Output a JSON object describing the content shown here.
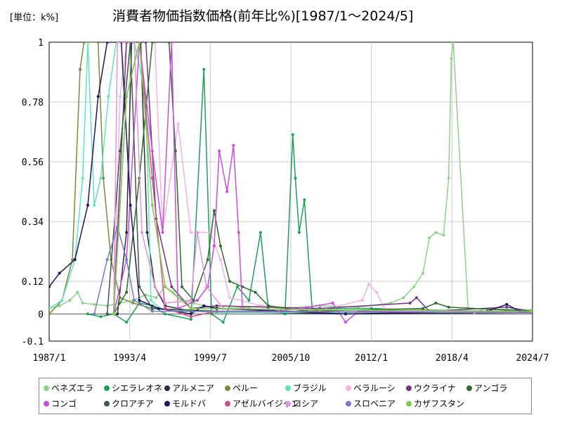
{
  "unit_label": "[単位：k%]",
  "chart_data": {
    "type": "line",
    "title": "消費者物価指数価格(前年比%)[1987/1～2024/5]",
    "xlabel": "",
    "ylabel": "",
    "x_tick_labels": [
      "1987/1",
      "1993/4",
      "1999/7",
      "2005/10",
      "2012/1",
      "2018/4",
      "2024/7"
    ],
    "y_tick_labels": [
      "1",
      "0.78",
      "0.56",
      "0.34",
      "0.12",
      "0",
      "-0.1"
    ],
    "ylim": [
      -0.1,
      1
    ],
    "xlim": [
      1987.0,
      2024.5
    ],
    "grid": true,
    "legend_position": "bottom",
    "series": [
      {
        "name": "ベネズエラ",
        "color": "#8fd18a",
        "points": [
          [
            1987.0,
            0.02
          ],
          [
            1987.8,
            0.03
          ],
          [
            1988.6,
            0.05
          ],
          [
            1989.2,
            0.08
          ],
          [
            1989.6,
            0.04
          ],
          [
            1990.5,
            0.035
          ],
          [
            1991.5,
            0.03
          ],
          [
            1992.5,
            0.04
          ],
          [
            1993.5,
            0.05
          ],
          [
            1994.5,
            0.07
          ],
          [
            1995.3,
            0.06
          ],
          [
            1996.0,
            0.1
          ],
          [
            1996.6,
            0.08
          ],
          [
            1997.3,
            0.05
          ],
          [
            1998.2,
            0.04
          ],
          [
            1999.0,
            0.03
          ],
          [
            2000.5,
            0.02
          ],
          [
            2002.5,
            0.025
          ],
          [
            2003.5,
            0.03
          ],
          [
            2005.0,
            0.02
          ],
          [
            2008.0,
            0.03
          ],
          [
            2011.0,
            0.025
          ],
          [
            2013.5,
            0.04
          ],
          [
            2014.5,
            0.06
          ],
          [
            2015.3,
            0.1
          ],
          [
            2016.0,
            0.15
          ],
          [
            2016.5,
            0.28
          ],
          [
            2017.0,
            0.3
          ],
          [
            2017.6,
            0.29
          ],
          [
            2018.0,
            0.5
          ],
          [
            2018.2,
            0.94
          ],
          [
            2018.35,
            1.0
          ],
          [
            2019.5,
            0.02
          ],
          [
            2024.4,
            0.015
          ]
        ]
      },
      {
        "name": "シエラレオネ",
        "color": "#1e9e5c",
        "points": [
          [
            1990.0,
            0.0
          ],
          [
            1991.0,
            -0.01
          ],
          [
            1992.0,
            0.0
          ],
          [
            1993.0,
            -0.03
          ],
          [
            1994.0,
            0.04
          ],
          [
            1995.0,
            0.03
          ],
          [
            1996.0,
            0.0
          ],
          [
            1998.0,
            -0.02
          ],
          [
            1999.0,
            0.9
          ],
          [
            1999.6,
            0.0
          ],
          [
            2000.5,
            -0.03
          ],
          [
            2001.6,
            0.1
          ],
          [
            2002.5,
            0.05
          ],
          [
            2003.4,
            0.3
          ],
          [
            2004.0,
            0.02
          ],
          [
            2005.3,
            0.0
          ],
          [
            2005.9,
            0.66
          ],
          [
            2006.1,
            0.5
          ],
          [
            2006.4,
            0.3
          ],
          [
            2006.8,
            0.42
          ],
          [
            2007.4,
            0.02
          ],
          [
            2012.0,
            0.02
          ],
          [
            2016.0,
            0.015
          ],
          [
            2020.5,
            0.01
          ]
        ]
      },
      {
        "name": "アルメニア",
        "color": "#2a2a3a",
        "points": [
          [
            1992.3,
            0.0
          ],
          [
            1993.0,
            0.3
          ],
          [
            1993.4,
            1.0
          ],
          [
            1994.1,
            1.0
          ],
          [
            1994.6,
            0.3
          ],
          [
            1995.2,
            0.1
          ],
          [
            1996.0,
            0.03
          ],
          [
            1998.0,
            0.01
          ],
          [
            2010.0,
            0.0
          ],
          [
            2024.4,
            0.005
          ]
        ]
      },
      {
        "name": "ペルー",
        "color": "#7a8c3c",
        "points": [
          [
            1987.0,
            0.0
          ],
          [
            1988.0,
            0.05
          ],
          [
            1988.8,
            0.2
          ],
          [
            1989.4,
            0.9
          ],
          [
            1989.7,
            1.0
          ],
          [
            1990.8,
            1.0
          ],
          [
            1991.2,
            0.5
          ],
          [
            1991.8,
            0.2
          ],
          [
            1992.5,
            0.06
          ],
          [
            1993.5,
            0.04
          ],
          [
            1995.0,
            0.02
          ],
          [
            2000.0,
            0.005
          ],
          [
            2024.4,
            0.01
          ]
        ]
      },
      {
        "name": "ブラジル",
        "color": "#5fe3c0",
        "points": [
          [
            1987.0,
            0.02
          ],
          [
            1988.0,
            0.05
          ],
          [
            1989.0,
            0.2
          ],
          [
            1989.6,
            0.5
          ],
          [
            1990.0,
            1.0
          ],
          [
            1990.5,
            0.4
          ],
          [
            1991.0,
            0.5
          ],
          [
            1991.6,
            0.8
          ],
          [
            1992.2,
            1.0
          ],
          [
            1993.6,
            1.0
          ],
          [
            1994.5,
            0.8
          ],
          [
            1994.9,
            0.05
          ],
          [
            1995.6,
            0.02
          ],
          [
            2000.0,
            0.005
          ],
          [
            2024.4,
            0.005
          ]
        ]
      },
      {
        "name": "ベラルーシ",
        "color": "#f2b3e2",
        "points": [
          [
            1992.0,
            0.0
          ],
          [
            1992.5,
            0.8
          ],
          [
            1993.0,
            1.0
          ],
          [
            1995.2,
            1.0
          ],
          [
            1995.8,
            0.3
          ],
          [
            1997.0,
            0.7
          ],
          [
            1998.0,
            0.3
          ],
          [
            1999.5,
            0.3
          ],
          [
            2000.3,
            0.2
          ],
          [
            2001.0,
            0.06
          ],
          [
            2003.5,
            0.03
          ],
          [
            2008.0,
            0.015
          ],
          [
            2011.3,
            0.05
          ],
          [
            2011.8,
            0.11
          ],
          [
            2012.4,
            0.08
          ],
          [
            2013.0,
            0.02
          ],
          [
            2020.0,
            0.005
          ],
          [
            2024.4,
            0.01
          ]
        ]
      },
      {
        "name": "ウクライナ",
        "color": "#6b3a7d",
        "points": [
          [
            1992.0,
            0.0
          ],
          [
            1993.0,
            1.0
          ],
          [
            1994.5,
            1.0
          ],
          [
            1995.3,
            0.35
          ],
          [
            1996.5,
            0.1
          ],
          [
            1998.0,
            0.02
          ],
          [
            2000.0,
            0.03
          ],
          [
            2008.0,
            0.02
          ],
          [
            2015.0,
            0.04
          ],
          [
            2015.5,
            0.06
          ],
          [
            2016.5,
            0.01
          ],
          [
            2022.5,
            0.025
          ],
          [
            2024.4,
            0.01
          ]
        ]
      },
      {
        "name": "アンゴラ",
        "color": "#2f6b2a",
        "points": [
          [
            1992.0,
            0.0
          ],
          [
            1993.0,
            0.08
          ],
          [
            1994.0,
            0.5
          ],
          [
            1995.0,
            1.0
          ],
          [
            1996.3,
            1.0
          ],
          [
            1996.8,
            0.6
          ],
          [
            1997.3,
            0.1
          ],
          [
            1998.2,
            0.05
          ],
          [
            1999.3,
            0.2
          ],
          [
            1999.8,
            0.38
          ],
          [
            2000.3,
            0.25
          ],
          [
            2001.0,
            0.12
          ],
          [
            2002.0,
            0.1
          ],
          [
            2003.0,
            0.08
          ],
          [
            2004.0,
            0.03
          ],
          [
            2007.0,
            0.01
          ],
          [
            2016.0,
            0.02
          ],
          [
            2017.0,
            0.04
          ],
          [
            2018.0,
            0.025
          ],
          [
            2024.4,
            0.01
          ]
        ]
      },
      {
        "name": "コンゴ",
        "color": "#c74ddf",
        "points": [
          [
            1992.0,
            0.0
          ],
          [
            1993.0,
            0.2
          ],
          [
            1994.0,
            1.0
          ],
          [
            1995.0,
            0.6
          ],
          [
            1995.8,
            0.3
          ],
          [
            1996.5,
            1.0
          ],
          [
            1997.0,
            0.02
          ],
          [
            1998.5,
            0.05
          ],
          [
            1999.3,
            0.1
          ],
          [
            1999.8,
            0.25
          ],
          [
            2000.2,
            0.6
          ],
          [
            2000.8,
            0.45
          ],
          [
            2001.3,
            0.62
          ],
          [
            2001.7,
            0.3
          ],
          [
            2002.0,
            0.02
          ],
          [
            2005.0,
            0.01
          ],
          [
            2009.0,
            0.04
          ],
          [
            2010.0,
            -0.03
          ],
          [
            2011.0,
            0.01
          ],
          [
            2024.4,
            0.005
          ]
        ]
      },
      {
        "name": "クロアチア",
        "color": "#3a5a4a",
        "points": [
          [
            1991.5,
            0.0
          ],
          [
            1992.5,
            0.6
          ],
          [
            1993.3,
            1.0
          ],
          [
            1994.0,
            0.1
          ],
          [
            1995.0,
            0.02
          ],
          [
            2000.0,
            0.01
          ],
          [
            2024.4,
            0.005
          ]
        ]
      },
      {
        "name": "モルドバ",
        "color": "#23135e",
        "points": [
          [
            1987.0,
            0.1
          ],
          [
            1987.8,
            0.15
          ],
          [
            1989.0,
            0.2
          ],
          [
            1990.0,
            0.4
          ],
          [
            1990.8,
            0.8
          ],
          [
            1991.5,
            1.0
          ],
          [
            1992.6,
            1.0
          ],
          [
            1993.3,
            0.4
          ],
          [
            1994.0,
            0.05
          ],
          [
            1995.5,
            0.02
          ],
          [
            1998.0,
            0.0
          ],
          [
            1999.0,
            0.03
          ],
          [
            2000.0,
            0.02
          ],
          [
            2010.0,
            0.0
          ],
          [
            2021.0,
            0.01
          ],
          [
            2022.5,
            0.035
          ],
          [
            2023.5,
            0.01
          ],
          [
            2024.4,
            0.005
          ]
        ]
      },
      {
        "name": "アゼルバイジャン",
        "color": "#d04d8a",
        "points": [
          [
            1992.0,
            0.0
          ],
          [
            1993.0,
            0.8
          ],
          [
            1994.0,
            1.0
          ],
          [
            1995.0,
            0.5
          ],
          [
            1996.0,
            0.02
          ],
          [
            1998.0,
            -0.01
          ],
          [
            2000.0,
            0.01
          ],
          [
            2024.4,
            0.005
          ]
        ]
      },
      {
        "name": "ロシア",
        "color": "#e493e0",
        "points": [
          [
            1992.0,
            0.0
          ],
          [
            1992.3,
            1.0
          ],
          [
            1993.6,
            1.0
          ],
          [
            1994.2,
            0.3
          ],
          [
            1995.2,
            0.1
          ],
          [
            1996.0,
            0.04
          ],
          [
            1998.0,
            0.05
          ],
          [
            1998.5,
            0.3
          ],
          [
            1999.2,
            0.1
          ],
          [
            2000.5,
            0.02
          ],
          [
            2024.4,
            0.005
          ]
        ]
      },
      {
        "name": "スロベニア",
        "color": "#7a78c4",
        "points": [
          [
            1990.5,
            0.0
          ],
          [
            1991.5,
            0.2
          ],
          [
            1992.3,
            0.32
          ],
          [
            1993.0,
            0.2
          ],
          [
            1993.6,
            0.05
          ],
          [
            1995.0,
            0.01
          ],
          [
            2024.4,
            0.005
          ]
        ]
      },
      {
        "name": "カザフスタン",
        "color": "#7ccc4a",
        "points": [
          [
            1992.0,
            0.0
          ],
          [
            1993.0,
            0.8
          ],
          [
            1994.0,
            1.0
          ],
          [
            1995.0,
            0.4
          ],
          [
            1996.0,
            0.1
          ],
          [
            1998.0,
            0.02
          ],
          [
            2008.0,
            0.015
          ],
          [
            2024.4,
            0.01
          ]
        ]
      }
    ]
  }
}
